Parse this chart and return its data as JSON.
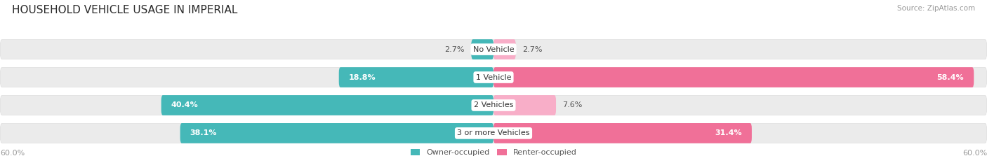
{
  "title": "HOUSEHOLD VEHICLE USAGE IN IMPERIAL",
  "source": "Source: ZipAtlas.com",
  "categories": [
    "No Vehicle",
    "1 Vehicle",
    "2 Vehicles",
    "3 or more Vehicles"
  ],
  "owner_values": [
    2.7,
    18.8,
    40.4,
    38.1
  ],
  "renter_values": [
    2.7,
    58.4,
    7.6,
    31.4
  ],
  "max_val": 60.0,
  "owner_color": "#45b8b8",
  "renter_color": "#f07098",
  "renter_color_light": "#f8aec8",
  "bar_bg_color": "#ebebeb",
  "bar_border_color": "#d8d8d8",
  "bar_height": 0.72,
  "figsize": [
    14.06,
    2.33
  ],
  "dpi": 100,
  "title_fontsize": 11,
  "label_fontsize": 8,
  "category_fontsize": 8,
  "axis_label_fontsize": 8,
  "legend_fontsize": 8,
  "bg_color": "#ffffff",
  "text_color": "#555555",
  "axis_label_color": "#999999"
}
